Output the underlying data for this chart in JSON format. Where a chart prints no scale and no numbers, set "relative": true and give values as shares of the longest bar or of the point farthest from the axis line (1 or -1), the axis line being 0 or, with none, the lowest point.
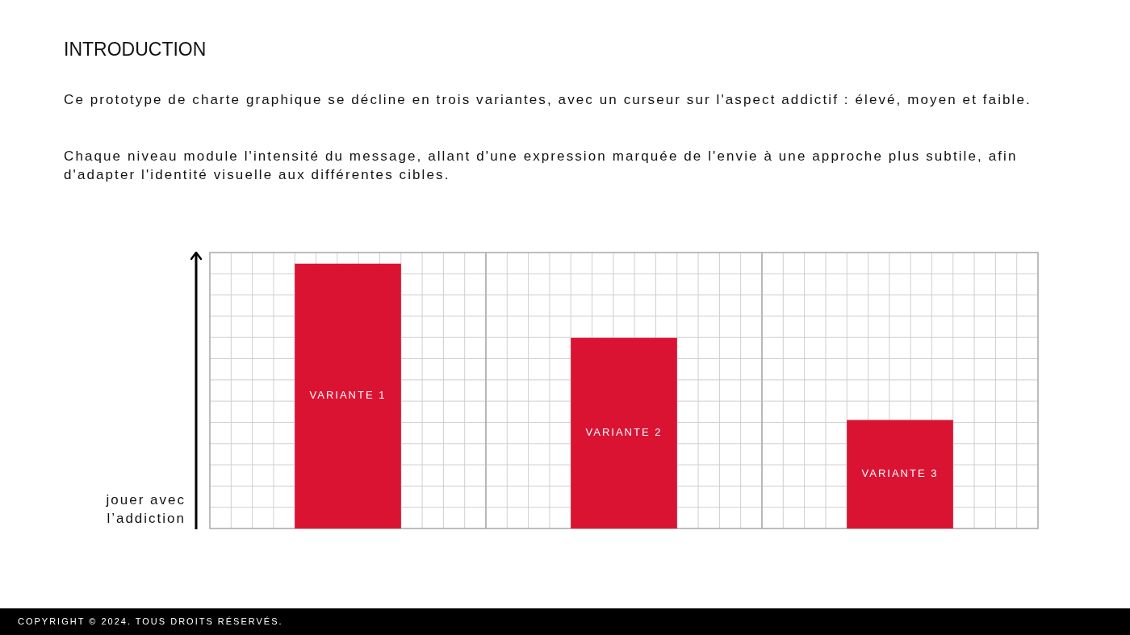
{
  "chart_data": {
    "type": "bar",
    "title": "INTRODUCTION",
    "annotations": [
      "Ce prototype de charte graphique se décline en trois variantes, avec un curseur sur l'aspect addictif : élevé, moyen et faible.",
      "Chaque niveau module l'intensité du message, allant d'une expression marquée de l'envie à une approche plus subtile, afin d'adapter l'identité visuelle aux différentes cibles.",
      "COPYRIGHT © 2024. TOUS DROITS RÉSERVÉS."
    ],
    "ylabel": "jouer avec l’addiction",
    "categories": [
      "VARIANTE 1",
      "VARIANTE 2",
      "VARIANTE 3"
    ],
    "values": [
      1,
      0.72,
      0.41
    ],
    "color": "#da1333",
    "relative": true,
    "grid": true
  }
}
